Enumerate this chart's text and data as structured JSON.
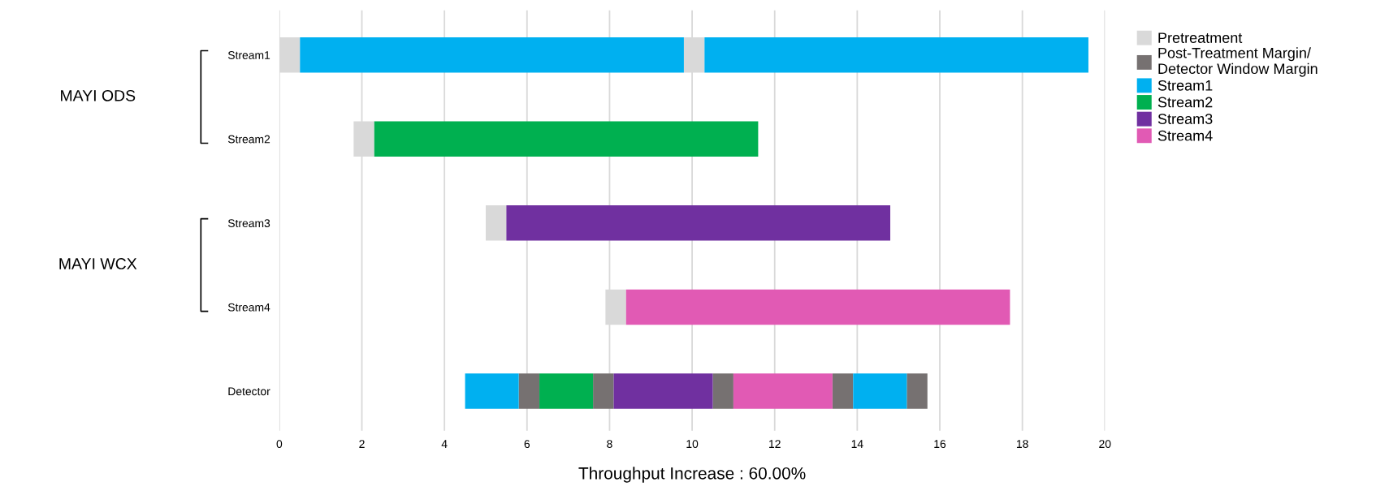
{
  "chart_data": {
    "type": "bar",
    "orientation": "horizontal",
    "categories": [
      "Stream1",
      "Stream2",
      "Stream3",
      "Stream4",
      "Detector"
    ],
    "series": [
      {
        "name": "Pretreatment",
        "color": "#d9d9d9",
        "values": [
          0.5,
          0.5,
          0.5,
          0.5,
          null
        ],
        "base": [
          0,
          1.8,
          5.0,
          7.9,
          null
        ]
      },
      {
        "color": "#d9d9d9",
        "values": [
          0.5,
          null,
          null,
          null,
          null
        ],
        "base": [
          9.8,
          null,
          null,
          null,
          null
        ]
      },
      {
        "name": "Post-Treatment Margin/\nDetector Window Margin",
        "color": "#767171",
        "values": [
          null,
          null,
          null,
          null,
          0.5
        ],
        "base": [
          null,
          null,
          null,
          null,
          5.8
        ]
      },
      {
        "color": "#767171",
        "values": [
          null,
          null,
          null,
          null,
          0.5
        ],
        "base": [
          null,
          null,
          null,
          null,
          7.6
        ]
      },
      {
        "color": "#767171",
        "values": [
          null,
          null,
          null,
          null,
          0.5
        ],
        "base": [
          null,
          null,
          null,
          null,
          10.5
        ]
      },
      {
        "color": "#767171",
        "values": [
          null,
          null,
          null,
          null,
          0.5
        ],
        "base": [
          null,
          null,
          null,
          null,
          13.4
        ]
      },
      {
        "color": "#767171",
        "values": [
          null,
          null,
          null,
          null,
          0.5
        ],
        "base": [
          null,
          null,
          null,
          null,
          15.2
        ]
      },
      {
        "name": "Stream1",
        "color": "#00b0f0",
        "values": [
          9.3,
          null,
          null,
          null,
          1.3
        ],
        "base": [
          0.5,
          null,
          null,
          null,
          4.5
        ]
      },
      {
        "color": "#00b0f0",
        "values": [
          9.3,
          null,
          null,
          null,
          1.3
        ],
        "base": [
          10.3,
          null,
          null,
          null,
          13.9
        ]
      },
      {
        "name": "Stream2",
        "color": "#00b050",
        "values": [
          null,
          9.3,
          null,
          null,
          1.3
        ],
        "base": [
          null,
          2.3,
          null,
          null,
          6.3
        ]
      },
      {
        "name": "Stream3",
        "color": "#7030a0",
        "values": [
          null,
          null,
          9.3,
          null,
          2.4
        ],
        "base": [
          null,
          null,
          5.5,
          null,
          8.1
        ]
      },
      {
        "name": "Stream4",
        "color": "#e15ab4",
        "values": [
          null,
          null,
          null,
          9.3,
          2.4
        ],
        "base": [
          null,
          null,
          null,
          8.4,
          11.0
        ]
      }
    ],
    "xlim": [
      0,
      20
    ],
    "xticks": [
      0,
      2,
      4,
      6,
      8,
      10,
      12,
      14,
      16,
      18,
      20
    ],
    "grid": "x",
    "legend": "right",
    "annotations": [
      "MAYI ODS",
      "MAYI WCX",
      "Throughput Increase : 60.00%"
    ]
  }
}
